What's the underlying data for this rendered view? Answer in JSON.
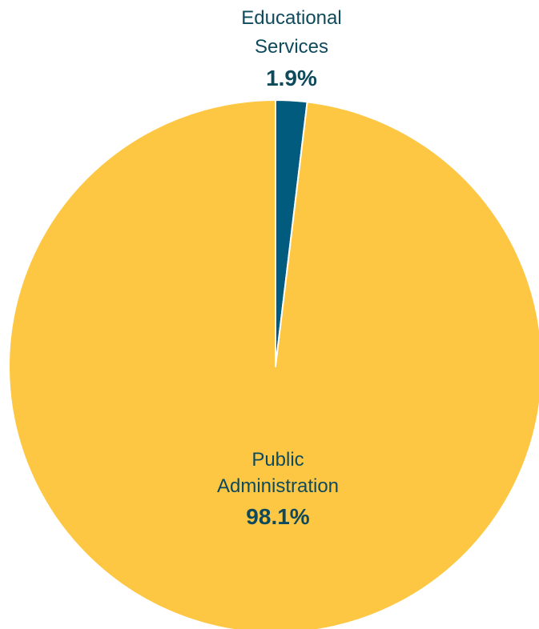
{
  "chart_data": {
    "type": "pie",
    "title": "",
    "slices": [
      {
        "label_lines": [
          "Educational",
          "Services"
        ],
        "value": 1.9,
        "value_label": "1.9%",
        "color": "#005b7f"
      },
      {
        "label_lines": [
          "Public",
          "Administration"
        ],
        "value": 98.1,
        "value_label": "98.1%",
        "color": "#fdc743"
      }
    ],
    "start_angle": "top (12 o'clock), clockwise",
    "legend": "none",
    "label_color": "#0f4a5c",
    "slice_border_color": "#ffffff"
  }
}
